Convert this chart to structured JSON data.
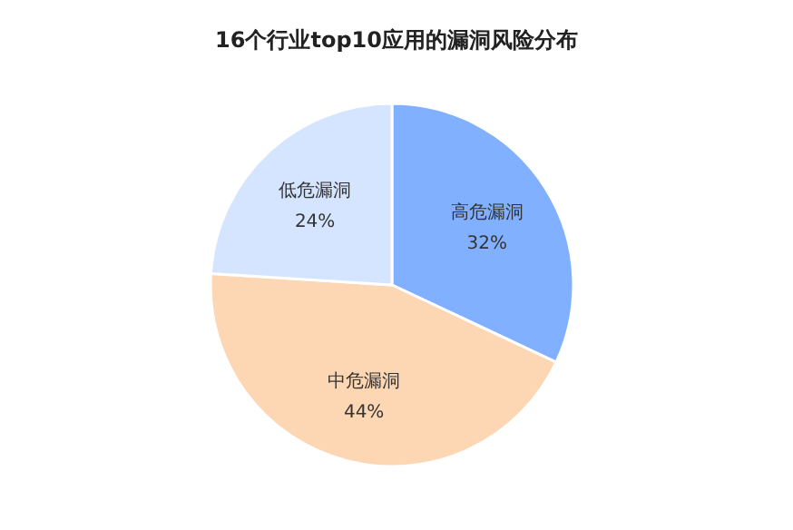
{
  "chart_data": {
    "type": "pie",
    "title": "16个行业top10应用的漏洞风险分布",
    "categories": [
      "高危漏洞",
      "中危漏洞",
      "低危漏洞"
    ],
    "values": [
      32,
      44,
      24
    ],
    "value_labels": [
      "32%",
      "44%",
      "24%"
    ],
    "colors": [
      "#80b0ff",
      "#fdd6b3",
      "#d5e4ff"
    ],
    "legend": false
  }
}
